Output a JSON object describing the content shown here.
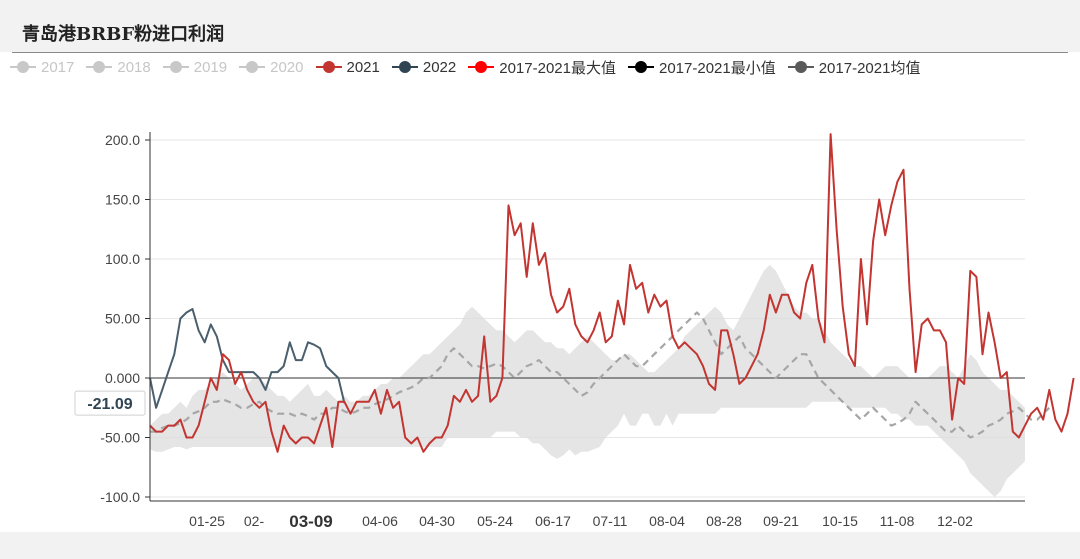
{
  "title": "青岛港BRBF粉进口利润",
  "legend": [
    {
      "label": "2017",
      "color": "#c8c8c8",
      "active": false
    },
    {
      "label": "2018",
      "color": "#c8c8c8",
      "active": false
    },
    {
      "label": "2019",
      "color": "#c8c8c8",
      "active": false
    },
    {
      "label": "2020",
      "color": "#c8c8c8",
      "active": false
    },
    {
      "label": "2021",
      "color": "#c23531",
      "active": true
    },
    {
      "label": "2022",
      "color": "#2f4554",
      "active": true
    },
    {
      "label": "2017-2021最大值",
      "color": "#ff0000",
      "active": true
    },
    {
      "label": "2017-2021最小值",
      "color": "#000000",
      "active": true
    },
    {
      "label": "2017-2021均值",
      "color": "#5a5a5a",
      "active": true
    }
  ],
  "chart_data": {
    "type": "line",
    "ylim": [
      -100,
      200
    ],
    "y_ticks": [
      "200.0",
      "150.0",
      "100.0",
      "50.00",
      "0.000",
      "-50.00",
      "-100.0"
    ],
    "x_ticks": [
      "01-25",
      "02-",
      "03-09",
      "04-06",
      "04-30",
      "05-24",
      "06-17",
      "07-11",
      "08-04",
      "08-28",
      "09-21",
      "10-15",
      "11-08",
      "12-02"
    ],
    "highlight_x_label": "03-09",
    "axis_pointer_value": "-21.09",
    "n_points": 145,
    "band_upper": [
      -40,
      -35,
      -30,
      -30,
      -25,
      -20,
      -25,
      -15,
      -10,
      -10,
      -5,
      0,
      5,
      0,
      -5,
      -10,
      -5,
      0,
      0,
      -5,
      -10,
      -15,
      -15,
      -20,
      -15,
      -10,
      -5,
      -15,
      -15,
      -10,
      -15,
      -20,
      -15,
      -20,
      -20,
      -15,
      -15,
      -10,
      -5,
      -5,
      0,
      0,
      5,
      10,
      15,
      20,
      20,
      25,
      30,
      35,
      40,
      45,
      55,
      60,
      55,
      50,
      45,
      40,
      40,
      35,
      30,
      35,
      40,
      40,
      35,
      30,
      30,
      25,
      25,
      20,
      25,
      30,
      35,
      30,
      25,
      20,
      15,
      15,
      20,
      20,
      15,
      10,
      5,
      5,
      10,
      15,
      20,
      25,
      35,
      40,
      45,
      50,
      55,
      60,
      55,
      45,
      40,
      50,
      60,
      70,
      80,
      90,
      95,
      90,
      80,
      70,
      60,
      55,
      55,
      50,
      50,
      40,
      30,
      25,
      20,
      15,
      10,
      10,
      5,
      0,
      5,
      10,
      10,
      10,
      5,
      0,
      0,
      0,
      0,
      5,
      10,
      10,
      5,
      0,
      10,
      20,
      15,
      5,
      0,
      -5,
      -10,
      -10,
      -15,
      -20,
      -25
    ],
    "band_lower": [
      -60,
      -62,
      -62,
      -60,
      -58,
      -58,
      -60,
      -58,
      -58,
      -58,
      -58,
      -58,
      -58,
      -58,
      -58,
      -58,
      -58,
      -58,
      -58,
      -58,
      -58,
      -58,
      -58,
      -58,
      -58,
      -58,
      -58,
      -58,
      -58,
      -58,
      -58,
      -58,
      -58,
      -58,
      -58,
      -58,
      -58,
      -58,
      -58,
      -58,
      -58,
      -58,
      -58,
      -58,
      -58,
      -58,
      -58,
      -58,
      -58,
      -50,
      -50,
      -50,
      -50,
      -50,
      -50,
      -50,
      -50,
      -45,
      -45,
      -45,
      -45,
      -50,
      -50,
      -55,
      -55,
      -60,
      -65,
      -68,
      -65,
      -60,
      -65,
      -62,
      -62,
      -60,
      -58,
      -50,
      -45,
      -40,
      -30,
      -40,
      -40,
      -30,
      -30,
      -40,
      -40,
      -30,
      -40,
      -30,
      -30,
      -30,
      -30,
      -30,
      -30,
      -30,
      -25,
      -25,
      -25,
      -25,
      -25,
      -25,
      -25,
      -25,
      -25,
      -25,
      -25,
      -25,
      -25,
      -25,
      -25,
      -20,
      -20,
      -20,
      -20,
      -20,
      -20,
      -25,
      -25,
      -25,
      -25,
      -25,
      -25,
      -25,
      -30,
      -30,
      -35,
      -35,
      -40,
      -40,
      -40,
      -45,
      -50,
      -55,
      -60,
      -65,
      -70,
      -80,
      -85,
      -90,
      -95,
      -100,
      -95,
      -85,
      -80,
      -75,
      -70
    ],
    "series": [
      {
        "name": "2022",
        "color": "#4a5f6e",
        "start_index": 0,
        "values": [
          0,
          -25,
          -10,
          5,
          20,
          50,
          55,
          58,
          40,
          30,
          45,
          35,
          15,
          5,
          5,
          5,
          5,
          5,
          0,
          -10,
          5,
          5,
          10,
          30,
          15,
          15,
          30,
          28,
          25,
          10,
          5,
          0,
          -21.09
        ]
      },
      {
        "name": "2021",
        "color": "#c23531",
        "start_index": 0,
        "values": [
          -40,
          -45,
          -45,
          -40,
          -40,
          -35,
          -50,
          -50,
          -40,
          -20,
          0,
          -10,
          20,
          15,
          -5,
          5,
          -10,
          -20,
          -25,
          -20,
          -45,
          -62,
          -40,
          -50,
          -55,
          -50,
          -50,
          -55,
          -40,
          -25,
          -58,
          -20,
          -20,
          -30,
          -20,
          -20,
          -20,
          -10,
          -30,
          -10,
          -25,
          -20,
          -50,
          -55,
          -50,
          -62,
          -55,
          -50,
          -50,
          -40,
          -15,
          -20,
          -10,
          -20,
          -15,
          35,
          -20,
          -15,
          0,
          145,
          120,
          130,
          85,
          130,
          95,
          105,
          70,
          55,
          60,
          75,
          45,
          35,
          30,
          40,
          55,
          30,
          35,
          65,
          45,
          95,
          75,
          80,
          55,
          70,
          60,
          65,
          35,
          25,
          30,
          25,
          20,
          10,
          -5,
          -10,
          40,
          40,
          20,
          -5,
          0,
          10,
          20,
          40,
          70,
          55,
          70,
          70,
          55,
          50,
          80,
          95,
          50,
          30,
          205,
          125,
          60,
          20,
          10,
          100,
          45,
          115,
          150,
          120,
          145,
          165,
          175,
          75,
          5,
          45,
          50,
          40,
          40,
          30,
          -35,
          0,
          -5,
          90,
          85,
          20,
          55,
          30,
          0,
          5,
          -45,
          -50,
          -40,
          -30,
          -25,
          -35,
          -10,
          -35,
          -45,
          -30,
          0
        ]
      },
      {
        "name": "2017-2021均值",
        "color": "#a6a6a6",
        "start_index": 0,
        "values": [
          -45,
          -45,
          -42,
          -40,
          -40,
          -38,
          -35,
          -30,
          -28,
          -25,
          -20,
          -20,
          -18,
          -20,
          -22,
          -25,
          -25,
          -22,
          -20,
          -25,
          -28,
          -30,
          -30,
          -30,
          -32,
          -30,
          -32,
          -35,
          -30,
          -30,
          -25,
          -25,
          -28,
          -30,
          -28,
          -25,
          -25,
          -22,
          -20,
          -18,
          -15,
          -12,
          -10,
          -8,
          -5,
          0,
          0,
          5,
          10,
          20,
          25,
          20,
          15,
          10,
          10,
          8,
          10,
          12,
          10,
          5,
          0,
          5,
          10,
          12,
          15,
          10,
          5,
          5,
          0,
          -5,
          -10,
          -15,
          -12,
          -5,
          0,
          5,
          10,
          15,
          20,
          15,
          10,
          10,
          15,
          20,
          25,
          30,
          35,
          40,
          45,
          50,
          55,
          50,
          40,
          30,
          20,
          25,
          30,
          35,
          25,
          20,
          15,
          10,
          5,
          0,
          5,
          10,
          15,
          20,
          20,
          10,
          0,
          -5,
          -10,
          -15,
          -20,
          -25,
          -30,
          -35,
          -30,
          -25,
          -30,
          -35,
          -40,
          -38,
          -35,
          -30,
          -20,
          -25,
          -30,
          -35,
          -40,
          -45,
          -45,
          -40,
          -45,
          -50,
          -48,
          -45,
          -40,
          -38,
          -35,
          -30,
          -28,
          -25,
          -30,
          -35,
          -35,
          -30,
          -25
        ]
      }
    ]
  }
}
